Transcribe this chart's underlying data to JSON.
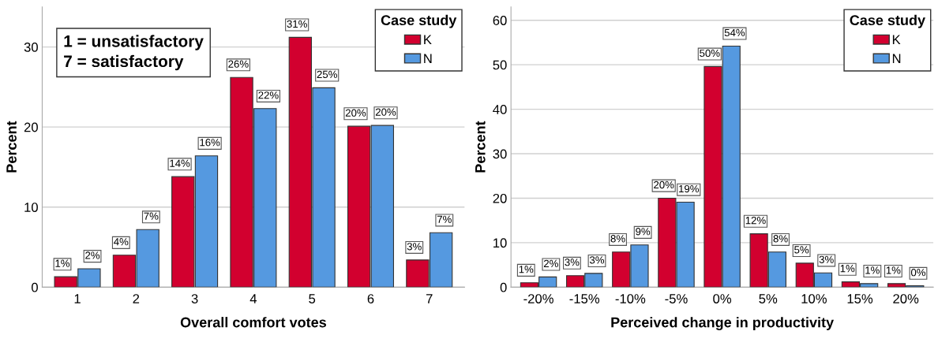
{
  "chart_data": [
    {
      "type": "bar",
      "xlabel": "Overall comfort votes",
      "ylabel": "Percent",
      "legend_title": "Case study",
      "legend": "top right",
      "grid": "y",
      "categories": [
        "1",
        "2",
        "3",
        "4",
        "5",
        "6",
        "7"
      ],
      "ylim": [
        0,
        35
      ],
      "yticks": [
        0,
        10,
        20,
        30
      ],
      "annotations": [
        "1 = unsatisfactory\n7 = satisfactory"
      ],
      "series": [
        {
          "name": "K",
          "color": "#d2002f",
          "values": [
            1.3,
            4.0,
            13.8,
            26.2,
            31.2,
            20.1,
            3.4
          ],
          "value_labels": [
            "1%",
            "4%",
            "14%",
            "26%",
            "31%",
            "20%",
            "3%"
          ]
        },
        {
          "name": "N",
          "color": "#5599e0",
          "values": [
            2.3,
            7.2,
            16.4,
            22.3,
            24.9,
            20.2,
            6.8
          ],
          "value_labels": [
            "2%",
            "7%",
            "16%",
            "22%",
            "25%",
            "20%",
            "7%"
          ]
        }
      ]
    },
    {
      "type": "bar",
      "xlabel": "Perceived change in productivity",
      "ylabel": "Percent",
      "legend_title": "Case study",
      "legend": "top right",
      "grid": "y",
      "categories": [
        "-20%",
        "-15%",
        "-10%",
        "-5%",
        "0%",
        "5%",
        "10%",
        "15%",
        "20%"
      ],
      "ylim": [
        0,
        63
      ],
      "yticks": [
        0,
        10,
        20,
        30,
        40,
        50,
        60
      ],
      "series": [
        {
          "name": "K",
          "color": "#d2002f",
          "values": [
            1.0,
            2.6,
            7.9,
            20.0,
            49.6,
            12.0,
            5.4,
            1.2,
            0.8
          ],
          "value_labels": [
            "1%",
            "3%",
            "8%",
            "20%",
            "50%",
            "12%",
            "5%",
            "1%",
            "1%"
          ]
        },
        {
          "name": "N",
          "color": "#5599e0",
          "values": [
            2.3,
            3.1,
            9.5,
            19.1,
            54.2,
            7.9,
            3.2,
            0.8,
            0.3
          ],
          "value_labels": [
            "2%",
            "3%",
            "9%",
            "19%",
            "54%",
            "8%",
            "3%",
            "1%",
            "0%"
          ]
        }
      ]
    }
  ]
}
